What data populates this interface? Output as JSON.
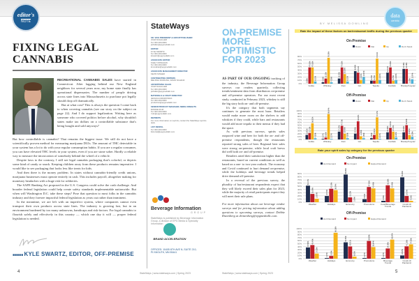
{
  "left_page": {
    "badge": {
      "line1": "editor's",
      "line2": "NOTE"
    },
    "title": "FIXING LEGAL CANNABIS",
    "lead": "RECREATIONAL CANNABIS SALES",
    "paragraphs": [
      " have started in Connecticut. After lagging behind our New England neighbors for several years now, my home state finally has operational dispensaries. The number of people driving across state lines into Massachusetts to purchase pot legally should drop off dramatically.",
      "But at what cost? This is always the question I come back to when covering cannabis (see our story on the subject on page 22). And I do support legalization. Writing here as someone who covered politics before alcohol, why shouldn't states make tax dollars on a controllable substance that's being bought and sold anyways?",
      "But how controllable is cannabis? That remains the biggest issue. We still do not have a scientifically proven method for measuring marijuana DUIs. The amount of THC detectable in your system has a lot to do with your regular consumption habits. If you are a regular consumer, you can have elevated THC levels in your system, even if you are stone sober. Hardly a reliable way to measure the intoxication of somebody behind the wheel of a vehicle.",
      "Despite laws to the contrary, I still see legal cannabis packaging that's colorful, or depicts some kind of candy or snack. Keeping children away from these products remains imperative. I would like to see packaging that looks less like treats for kids.",
      "And then there is the money problem. In states without cannabis-friendly credit unions, marijuana businesses must operate entirely in cash. This includes payroll, altogether making for monetary headaches with a huge risk for robberies.",
      "The SAFE Banking Act proposed in the U.S. Congress could solve the cash challenge. And broader federal legislation could help create safety standards implementable nationwide. But when will Washington D.C. take these steps? Pose that question to most folks in the cannabis industry and they foresee impactful federal legislation as years out rather than imminent.",
      "In the meantime, we are left with an imperfect system, where companies cannot even transport their own products across state lines. The industry is growing fast, but in an environment burdened by too many unknowns, handicaps and risk-factors. For legal cannabis to flourish safely and effectively in this country — which one day it will — proper federal legislation is needed."
    ],
    "byline": "KYLE SWARTZ, EDITOR, OFF-PREMISE",
    "page_number": "4"
  },
  "masthead": {
    "logo": "StateWays",
    "entries": [
      {
        "role": "SR. VICE PRESIDENT & GROUP PUBLISHER",
        "lines": [
          "JOHN SCHALLER",
          "Tel: 000-000-0000",
          "jschaller@epgmediallc.com"
        ]
      },
      {
        "role": "EDITOR",
        "lines": [
          "KYLE SWARTZ",
          "Tel: 000-000-0000",
          "kswartz@epgmediallc.com"
        ]
      },
      {
        "role": "ASSOCIATE EDITOR",
        "lines": [
          "KAELY MONAHAN",
          "Tel: 000-000-0000",
          "kmonahan@epgmediallc.com"
        ]
      },
      {
        "role": "ASSOCIATE MANAGEMENT DIRECTOR",
        "lines": [
          "KEVIN SINGER"
        ]
      },
      {
        "role": "CONTRIBUTING WRITERS",
        "lines": [
          "MELISSA DOWLING, DAVID SCHANZ"
        ]
      },
      {
        "role": "ADVERTISING SALES",
        "lines": [
          "JOHN SCHALLER",
          "Tel: 000-000-0000",
          "jschaller@epgmediallc.com"
        ]
      },
      {
        "role": "MATERIALS & CRAFT DIRECTOR",
        "lines": [
          "JESSICA KIRKPATRICK",
          "Tel: 000-000-0000",
          "production@epgmediallc.com"
        ]
      },
      {
        "role": "SENIOR PRODUCT MANAGER, MEDIA INSIGHTS",
        "lines": [
          "RONNIE RUIZ",
          "Tel: 000-000-0000",
          "rruiz@epgmediallc.com"
        ]
      },
      {
        "role": "REPRINTS",
        "lines": [
          "For more information on reprints, contact the StateWays reprints desk."
        ]
      },
      {
        "role": "LIST RENTAL",
        "lines": [
          "Tel: 000-000-0000",
          "listrental@epgmediallc.com"
        ]
      }
    ],
    "big_logo": "Beverage Information",
    "big_group": "GROUP",
    "big_note": "StateWays is published by Beverage Information Group, a division of EPG Media & Specialty Information",
    "ba_logo": "BRAND ACCELERATION",
    "office": "OFFICES: 10405 6TH AVE N, SUITE 210, PLYMOUTH, MN 55441",
    "footer": "StateWays | www.stateways.com | Spring 2023"
  },
  "right_page": {
    "title": "ON-PREMISE MORE OPTIMISTIC FOR 2023",
    "lead": "As part of our ongoing",
    "paragraphs": [
      " tracking of the industry, the Beverage Information Group surveys our readers quarterly, collecting trends/sentiment data from distributors on-premise and off-premise operators. For our most recent study, conducted in February 2023, whiskey is still the big story both on- and off-premise.",
      "It's the category that both segments say continues to generate the most buzz. Retailers would make more room on the shelves to add whiskies if they could, while bars and restaurants would add more tequila to their menus if they had the space.",
      "As with previous surveys, spirits sales outpaced wine and beer for both the on- and off-premise respondents, though the restaurants reported strong sales of beer. Regional beer sales were strong on-premise, while local craft brews did well both on- and off-premise.",
      "Retailers rated their satisfaction higher than the restaurants, based on current conditions as well as based on a one- to two-year outlook. The economy and Covid continued to hurt demand on-premise, while the holidays and beverage trends helped drive demand off-premise.",
      "In a reversal of the previous survey, the plurality of bar/restaurant respondents expect that they will likely exceed their sales plan for 2023, while the majority of retail participants expect they will meet their sale plans."
    ],
    "note": "For more information about our beverage vendor surveys and for pricing information about adding questions to upcoming surveys, contact Debbie Ritzenberg at dritzenberg@epgmediallc.com.",
    "footer": "StateWays | www.stateways.com | Spring 2023",
    "byline": "BY MELISSA DOWLING",
    "badge": {
      "line1": "data",
      "line2": "centric"
    },
    "page_number": "5",
    "q1": "Rate the impact of these factors on bar/restaurant traffic during the previous quarter",
    "q2": "Rate your spirit sales by category for the previous quarter"
  },
  "chart_data": [
    {
      "type": "bar",
      "title": "On-Premise",
      "categories": [
        "Vodka",
        "Whiskey",
        "Rum",
        "Gin",
        "Tequila",
        "Cordials",
        "Brandy/Cognac"
      ],
      "ylim": [
        0,
        80
      ],
      "yticks": [
        0,
        10,
        20,
        30,
        40,
        50,
        60,
        70,
        80
      ],
      "legend": "top-right",
      "series": [
        {
          "name": "Down",
          "color": "#1f2d4e",
          "values": [
            0,
            4.35,
            15.22,
            36.96,
            8.7,
            32.61,
            43.48
          ]
        },
        {
          "name": "Flat",
          "color": "#c0202b",
          "values": [
            47.83,
            15.22,
            47.83,
            32.61,
            8.7,
            47.83,
            43.48
          ]
        },
        {
          "name": "Up",
          "color": "#f5b31a",
          "values": [
            47.83,
            76.09,
            28.26,
            10.87,
            73.91,
            8.7,
            0
          ]
        },
        {
          "name": "Don't Stock",
          "color": "#4fb3d9",
          "values": [
            6.52,
            4.35,
            6.52,
            19.57,
            10.87,
            10.87,
            13.04
          ]
        }
      ]
    },
    {
      "type": "bar",
      "title": "Off-Premise",
      "categories": [
        "Vodka",
        "Whiskey",
        "Rum",
        "Gin",
        "Tequila",
        "Cordials",
        "Brandy/Cognac"
      ],
      "ylim": [
        0,
        100
      ],
      "yticks": [
        0,
        10,
        20,
        30,
        40,
        50,
        60,
        70,
        80,
        90,
        100
      ],
      "legend": "top-right",
      "series": [
        {
          "name": "Down",
          "color": "#1f2d4e",
          "values": [
            15.91,
            2.27,
            27.27,
            20.45,
            4.55,
            25,
            25
          ]
        },
        {
          "name": "Flat",
          "color": "#c0202b",
          "values": [
            22.73,
            6.82,
            47.73,
            63.64,
            15.91,
            40.91,
            50
          ]
        },
        {
          "name": "Up",
          "color": "#f5b31a",
          "values": [
            56.82,
            88.64,
            20.45,
            11.36,
            77.27,
            27.27,
            15.91
          ]
        },
        {
          "name": "Don't Stock",
          "color": "#4fb3d9",
          "values": [
            4.55,
            2.27,
            4.55,
            4.55,
            2.27,
            6.82,
            9.09
          ]
        }
      ]
    },
    {
      "type": "bar",
      "title": "On-Premise",
      "categories": [
        "Weather",
        "Holidays",
        "Economy",
        "Promotions",
        "Food/Beverage Trends",
        "Covid-19 Pandemic"
      ],
      "ylim": [
        0,
        90
      ],
      "yticks": [
        0,
        10,
        20,
        30,
        40,
        50,
        60,
        70,
        80,
        90
      ],
      "legend": "top",
      "series": [
        {
          "name": "Hurt Demand",
          "color": "#1f2d4e",
          "values": [
            52.17,
            19.57,
            86.96,
            9.52,
            4.35,
            78.26
          ]
        },
        {
          "name": "No Impact",
          "color": "#c0202b",
          "values": [
            26.09,
            42.39,
            15.22,
            47.83,
            53.26,
            19.57
          ]
        },
        {
          "name": "Helped Demand",
          "color": "#f5b31a",
          "values": [
            10.87,
            38.04,
            0,
            43.48,
            43.48,
            4.35
          ]
        }
      ]
    },
    {
      "type": "bar",
      "title": "Off-Premise",
      "categories": [
        "Weather",
        "Holidays",
        "Economy",
        "Promotions",
        "Beverage Trends",
        "Covid-19 Pandemic"
      ],
      "ylim": [
        0,
        100
      ],
      "yticks": [
        0,
        10,
        20,
        30,
        40,
        50,
        60,
        70,
        80,
        90,
        100
      ],
      "legend": "top",
      "series": [
        {
          "name": "Hurt Demand",
          "color": "#1f2d4e",
          "values": [
            37.5,
            2.27,
            54.55,
            2.27,
            2.27,
            10.87
          ]
        },
        {
          "name": "No Impact",
          "color": "#c0202b",
          "values": [
            45.45,
            9.09,
            40.91,
            59.09,
            34.09,
            41.3
          ]
        },
        {
          "name": "Helped Demand",
          "color": "#f5b31a",
          "values": [
            17.05,
            86.36,
            6.82,
            38.64,
            63.64,
            47.83
          ]
        }
      ]
    }
  ]
}
